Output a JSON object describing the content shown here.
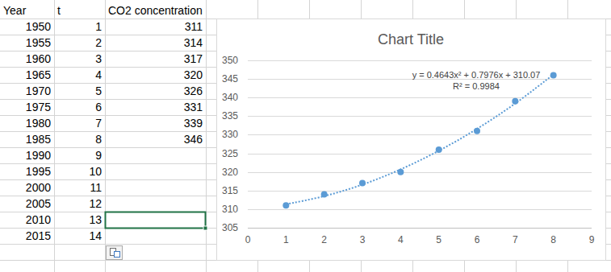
{
  "sheet": {
    "headers": [
      "Year",
      "t",
      "CO2 concentration"
    ],
    "rows": [
      [
        1950,
        1,
        311
      ],
      [
        1955,
        2,
        314
      ],
      [
        1960,
        3,
        317
      ],
      [
        1965,
        4,
        320
      ],
      [
        1970,
        5,
        326
      ],
      [
        1975,
        6,
        331
      ],
      [
        1980,
        7,
        339
      ],
      [
        1985,
        8,
        346
      ],
      [
        1990,
        9,
        null
      ],
      [
        1995,
        10,
        null
      ],
      [
        2000,
        11,
        null
      ],
      [
        2005,
        12,
        null
      ],
      [
        2010,
        13,
        null
      ],
      [
        2015,
        14,
        null
      ]
    ]
  },
  "chart_data": {
    "type": "scatter",
    "title": "Chart Title",
    "x": [
      1,
      2,
      3,
      4,
      5,
      6,
      7,
      8
    ],
    "series": [
      {
        "type": "scatter",
        "marker": "circle",
        "color": "#5b9bd5",
        "values": [
          311,
          314,
          317,
          320,
          326,
          331,
          339,
          346
        ]
      },
      {
        "type": "line",
        "line_style": "dotted",
        "color": "#5b9bd5",
        "values": [
          311.3,
          313.5,
          316.6,
          320.7,
          325.7,
          331.6,
          338.4,
          346.2
        ]
      }
    ],
    "annotations": [
      "y = 0.4643x² + 0.7976x + 310.07",
      "R² = 0.9984"
    ],
    "xlim": [
      0,
      9
    ],
    "xticks": [
      0,
      1,
      2,
      3,
      4,
      5,
      6,
      7,
      8,
      9
    ],
    "ylim": [
      305,
      350
    ],
    "yticks": [
      305,
      310,
      315,
      320,
      325,
      330,
      335,
      340,
      345,
      350
    ],
    "grid": true
  }
}
